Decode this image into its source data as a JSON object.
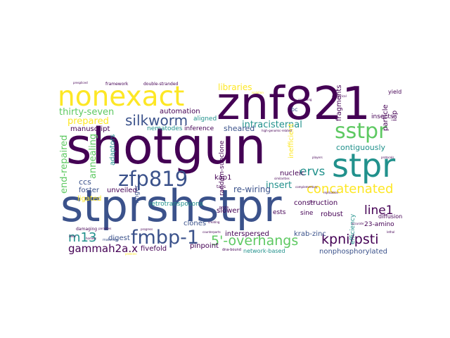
{
  "word_cloud": {
    "palette": {
      "dark_purple": "#440154",
      "indigo": "#3b528b",
      "teal": "#21918c",
      "green": "#5ec962",
      "yellow": "#fde725"
    },
    "words": {
      "shotgun": "shotgun",
      "stprshstpr": "stprshstpr",
      "znf821": "znf821",
      "nonexact": "nonexact",
      "stpr": "stpr",
      "sstpr": "sstpr",
      "zfp819": "zfp819",
      "fmbp_1": "fmbp-1",
      "silkworm": "silkworm",
      "concatenated": "concatenated",
      "overhangs": "5'-overhangs",
      "kpni_psti": "kpni/psti",
      "m13": "m13",
      "gammah2a": "gammah2a.x",
      "line1": "line1",
      "ervs": "ervs",
      "thirty_seven": "thirty-seven",
      "prepared": "prepared",
      "libraries": "libraries",
      "intracisternal": "intracisternal",
      "automation": "automation",
      "sheared": "sheared",
      "insert": "insert",
      "end_repaired": "end-repaired",
      "annealing": "annealing",
      "ccs": "ccs",
      "re_wiring": "re-wiring",
      "contiguously": "contiguously",
      "nonphosphorylated": "nonphosphorylated",
      "interspersed": "interspersed",
      "krab_zinc": "krab-zinc",
      "clones": "clones",
      "slower": "slower",
      "robust": "robust",
      "fragments": "fragments",
      "kap1": "kap1",
      "nucleic": "nucleic",
      "construction": "construction",
      "manuscript": "manuscript",
      "nematodes": "nematodes",
      "inference": "inference",
      "retrotransposons": "retrotransposons",
      "unveiled": "unveiled",
      "foster": "foster",
      "ligated": "ligated",
      "digest": "digest",
      "fivefold": "fivefold",
      "pinpoint": "pinpoint",
      "network_based": "network-based",
      "insects": "insects",
      "diffusion": "diffusion",
      "amino": "23-amino",
      "ests": "ests",
      "sine": "sine",
      "efficiency": "efficiency",
      "adaptors": "adaptors",
      "finger": "finger",
      "random_subclone": "random-subclone",
      "aligned": "aligned",
      "bc": "bc",
      "iap": "iap",
      "particle": "particle",
      "yield": "yield",
      "inefficient": "inefficient",
      "framework": "framework",
      "double_stranded": "double-stranded",
      "tags": "tags",
      "damaging": "damaging",
      "matches": "matches",
      "dna_bound": "dna-bound",
      "pools": "pools",
      "homers": "homers",
      "players": "players",
      "similarities": "similarities",
      "complementary": "complementary",
      "counterparts": "counterparts",
      "proteins": "proteins",
      "progress": "progress",
      "ideal": "ideal",
      "searching": "searching",
      "chimerical": "chimerical",
      "isolation": "isolation",
      "lethal": "lethal",
      "high_genomic": "high-genomic-related",
      "protocols": "protocols",
      "accurate": "accurate",
      "creating": "creating",
      "parasites": "parasites",
      "fact": "fact",
      "replication": "replication",
      "prespliced": "prespliced"
    }
  }
}
